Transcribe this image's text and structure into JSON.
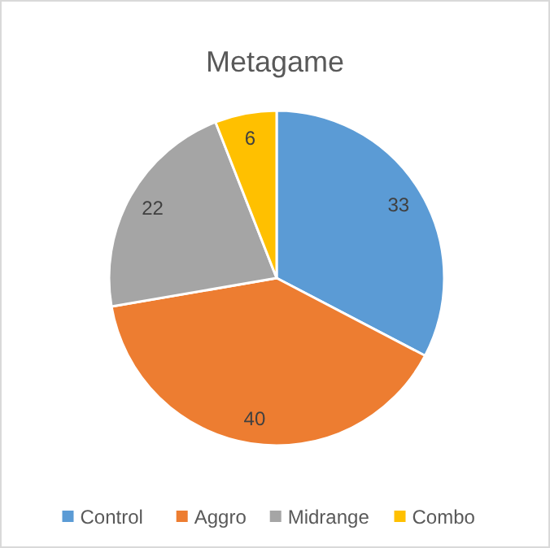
{
  "chart_data": {
    "type": "pie",
    "title": "Metagame",
    "categories": [
      "Control",
      "Aggro",
      "Midrange",
      "Combo"
    ],
    "values": [
      33,
      40,
      22,
      6
    ],
    "colors": [
      "#5b9bd5",
      "#ed7d31",
      "#a5a5a5",
      "#ffc000"
    ],
    "data_labels": true,
    "legend": "bottom"
  }
}
